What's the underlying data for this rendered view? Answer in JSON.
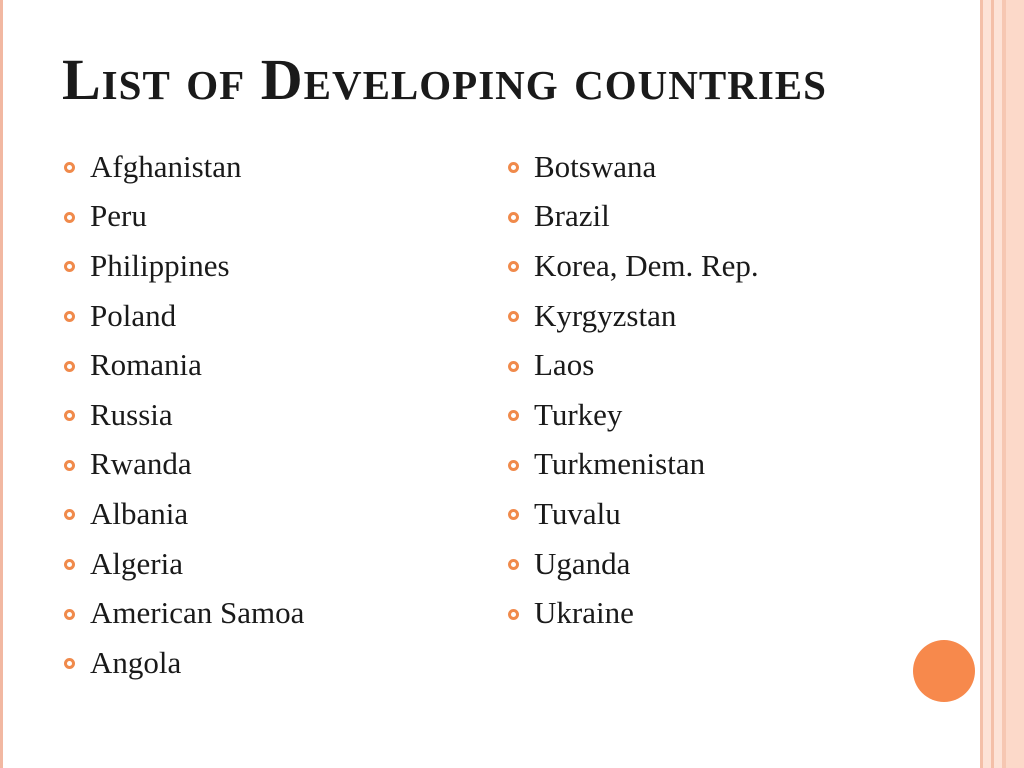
{
  "slide": {
    "title": "List of Developing countries",
    "accent_color": "#f08a4b",
    "left_column": [
      "Afghanistan",
      "Peru",
      "Philippines",
      "Poland",
      "Romania",
      "Russia",
      "Rwanda",
      "Albania",
      "Algeria",
      "American Samoa",
      "Angola"
    ],
    "right_column": [
      "Botswana",
      "Brazil",
      "Korea, Dem. Rep.",
      "Kyrgyzstan",
      "Laos",
      "Turkey",
      "Turkmenistan",
      "Tuvalu",
      "Uganda",
      "Ukraine"
    ]
  }
}
